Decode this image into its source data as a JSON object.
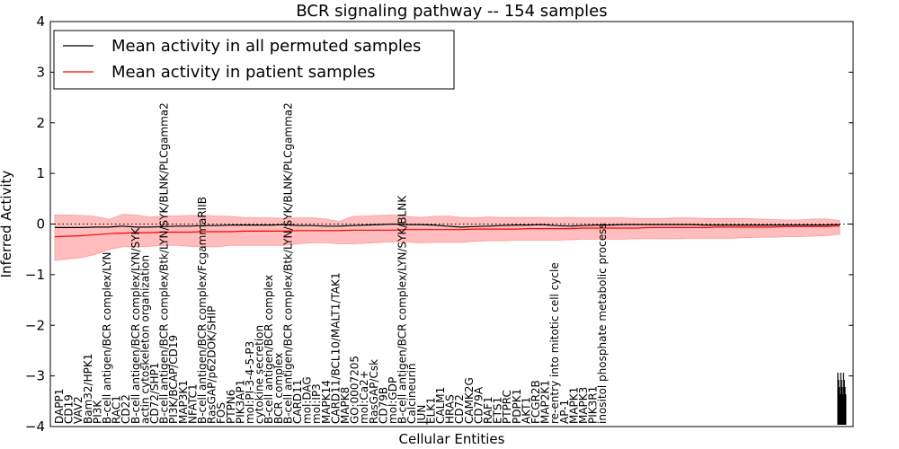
{
  "chart_data": {
    "type": "line",
    "title": "BCR signaling pathway -- 154 samples",
    "xlabel": "Cellular Entities",
    "ylabel": "Inferred Activity",
    "ylim": [
      -4,
      4
    ],
    "yticks": [
      -4,
      -3,
      -2,
      -1,
      0,
      1,
      2,
      3,
      4
    ],
    "legend_position": "top-left",
    "baseline": 0,
    "n_points": 59,
    "visible_entity_labels": [
      "DAPP1",
      "CD19",
      "VAV2",
      "Bam32/HPK1",
      "PI3K",
      "B-cell antigen/BCR complex/LYN",
      "RAC1",
      "CD22",
      "B-cell antigen/BCR complex/LYN/SYK",
      "actin cytoskeleton organization",
      "CD72/SHP1",
      "B-cell antigen/BCR complex/Btk/LYN/SYK/BLNK/PLCgamma2",
      "PI3K/BCAP/CD19",
      "MAP3K1",
      "NFATC1",
      "B-cell antigen/BCR complex/FcgammaRIIB",
      "RasGAP/p62DOK/SHIP",
      "FOS",
      "PTPN6",
      "PIK3AP1",
      "mol:PI-3-4-5-P3",
      "cytokine secretion",
      "B-cell antigen/BCR complex",
      "BCR complex",
      "B-cell antigen/BCR complex/Btk/LYN/SYK/BLNK/PLCgamma2",
      "CARD11",
      "mol:DAG",
      "mol:IP3",
      "MAPK14",
      "CARD11/BCL10/MALT1/TAK1",
      "MAPK8",
      "GO:0007205",
      "mol:Ca2+",
      "RasGAP/Csk",
      "CD79B",
      "mol:GDP",
      "B-cell antigen/BCR complex/LYN/SYK/BLNK",
      "Calcineurin",
      "JUN",
      "ELK1",
      "CALM1",
      "HRAS",
      "CD72",
      "CAMK2G",
      "CD79A",
      "RAF1",
      "ETS1",
      "PTPRC",
      "PDPK1",
      "AKT1",
      "FCGR2B",
      "MAP2K1",
      "re-entry into mitotic cell cycle",
      "AP-1",
      "MAPK1",
      "MAPK3",
      "PIK3R1",
      "inositol phosphate metabolic process"
    ],
    "series": [
      {
        "name": "Mean activity in all permuted samples",
        "color": "#000000",
        "values": [
          -0.07,
          -0.07,
          -0.07,
          -0.06,
          -0.06,
          -0.04,
          -0.06,
          -0.06,
          -0.05,
          -0.04,
          -0.04,
          -0.03,
          -0.03,
          -0.02,
          -0.02,
          -0.02,
          -0.02,
          -0.01,
          -0.03,
          -0.03,
          -0.04,
          -0.04,
          -0.03,
          -0.02,
          -0.01,
          0,
          -0.01,
          -0.01,
          -0.02,
          -0.04,
          -0.06,
          -0.05,
          -0.04,
          -0.03,
          -0.02,
          -0.02,
          -0.01,
          -0.03,
          -0.04,
          -0.03,
          -0.02,
          -0.02,
          -0.01,
          -0.01,
          -0.01,
          -0.01,
          -0.01,
          -0.01,
          -0.02,
          -0.02,
          -0.02,
          -0.02,
          -0.02,
          -0.02,
          -0.02,
          -0.02,
          -0.02,
          -0.02,
          -0.01
        ]
      },
      {
        "name": "Mean activity in patient samples",
        "color": "#ff0000",
        "band_color": "#ff9999",
        "values": [
          -0.25,
          -0.24,
          -0.23,
          -0.21,
          -0.19,
          -0.18,
          -0.17,
          -0.17,
          -0.16,
          -0.16,
          -0.16,
          -0.15,
          -0.15,
          -0.15,
          -0.14,
          -0.14,
          -0.14,
          -0.14,
          -0.13,
          -0.13,
          -0.13,
          -0.13,
          -0.12,
          -0.12,
          -0.12,
          -0.12,
          -0.11,
          -0.11,
          -0.11,
          -0.11,
          -0.11,
          -0.1,
          -0.1,
          -0.1,
          -0.1,
          -0.09,
          -0.09,
          -0.09,
          -0.09,
          -0.08,
          -0.08,
          -0.08,
          -0.08,
          -0.08,
          -0.07,
          -0.07,
          -0.07,
          -0.07,
          -0.07,
          -0.06,
          -0.06,
          -0.06,
          -0.06,
          -0.06,
          -0.05,
          -0.05,
          -0.05,
          -0.05,
          -0.04
        ],
        "band_upper": [
          0.18,
          0.18,
          0.17,
          0.15,
          0.09,
          0.19,
          0.18,
          0.14,
          0.16,
          0.16,
          0.17,
          0.17,
          0.16,
          0.15,
          0.13,
          0.12,
          0.12,
          0.11,
          0.12,
          0.12,
          0.1,
          0.05,
          0.15,
          0.16,
          0.17,
          0.18,
          0.15,
          0.13,
          0.15,
          0.16,
          0.13,
          0.12,
          0.14,
          0.13,
          0.13,
          0.13,
          0.13,
          0.12,
          0.13,
          0.12,
          0.12,
          0.12,
          0.12,
          0.11,
          0.11,
          0.11,
          0.12,
          0.12,
          0.11,
          0.11,
          0.11,
          0.11,
          0.1,
          0.09,
          0.08,
          0.08,
          0.1,
          0.1,
          0.07
        ],
        "band_lower": [
          -0.72,
          -0.69,
          -0.66,
          -0.6,
          -0.5,
          -0.45,
          -0.45,
          -0.44,
          -0.42,
          -0.42,
          -0.44,
          -0.45,
          -0.45,
          -0.42,
          -0.42,
          -0.42,
          -0.42,
          -0.42,
          -0.39,
          -0.37,
          -0.37,
          -0.39,
          -0.39,
          -0.38,
          -0.36,
          -0.35,
          -0.35,
          -0.37,
          -0.36,
          -0.36,
          -0.36,
          -0.34,
          -0.33,
          -0.33,
          -0.32,
          -0.32,
          -0.32,
          -0.32,
          -0.31,
          -0.3,
          -0.3,
          -0.3,
          -0.3,
          -0.29,
          -0.29,
          -0.29,
          -0.29,
          -0.28,
          -0.28,
          -0.28,
          -0.28,
          -0.27,
          -0.26,
          -0.26,
          -0.25,
          -0.25,
          -0.24,
          -0.23,
          -0.2
        ]
      }
    ]
  }
}
